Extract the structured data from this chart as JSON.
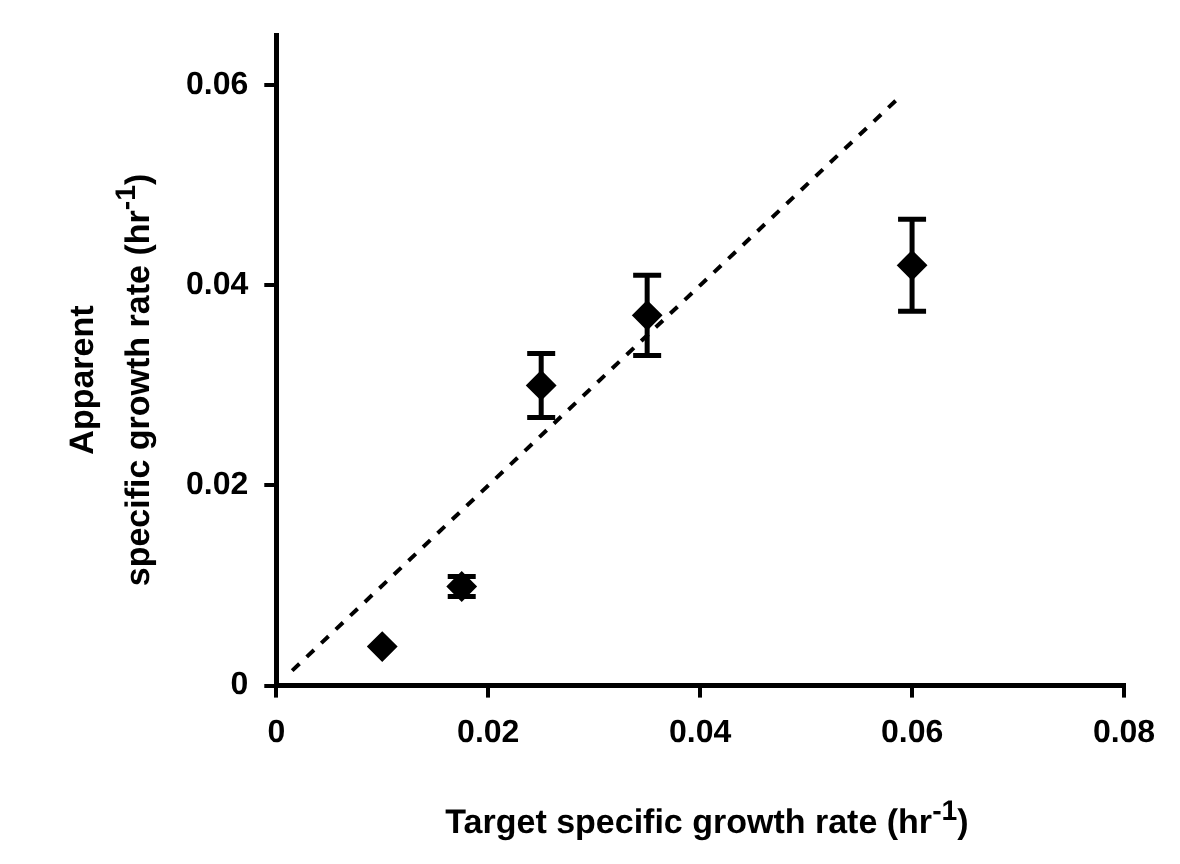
{
  "chart_data": {
    "type": "scatter",
    "xlabel": "Target specific growth rate (hr$^{-1}$)",
    "ylabel": "Apparent\nspecific growth rate (hr$^{-1}$)",
    "xlim": [
      0,
      0.08
    ],
    "xticks": [
      0,
      0.02,
      0.04,
      0.06,
      0.08
    ],
    "ylim": [
      0,
      0.065
    ],
    "yticks": [
      0,
      0.02,
      0.04,
      0.06
    ],
    "grid": false,
    "legend": false,
    "series": [
      {
        "type": "scatter",
        "color": "#000000",
        "marker": "diamond",
        "x": [
          0.01,
          0.0175,
          0.025,
          0.035,
          0.06
        ],
        "values": [
          0.0039,
          0.0099,
          0.03,
          0.037,
          0.042
        ],
        "errors": [
          null,
          0.001,
          0.0032,
          0.004,
          0.0046
        ]
      },
      {
        "type": "line",
        "color": "#000000",
        "marker": "none",
        "line_style": "dashed",
        "x": [
          0.0015,
          0.059
        ],
        "values": [
          0.0015,
          0.059
        ]
      }
    ]
  }
}
